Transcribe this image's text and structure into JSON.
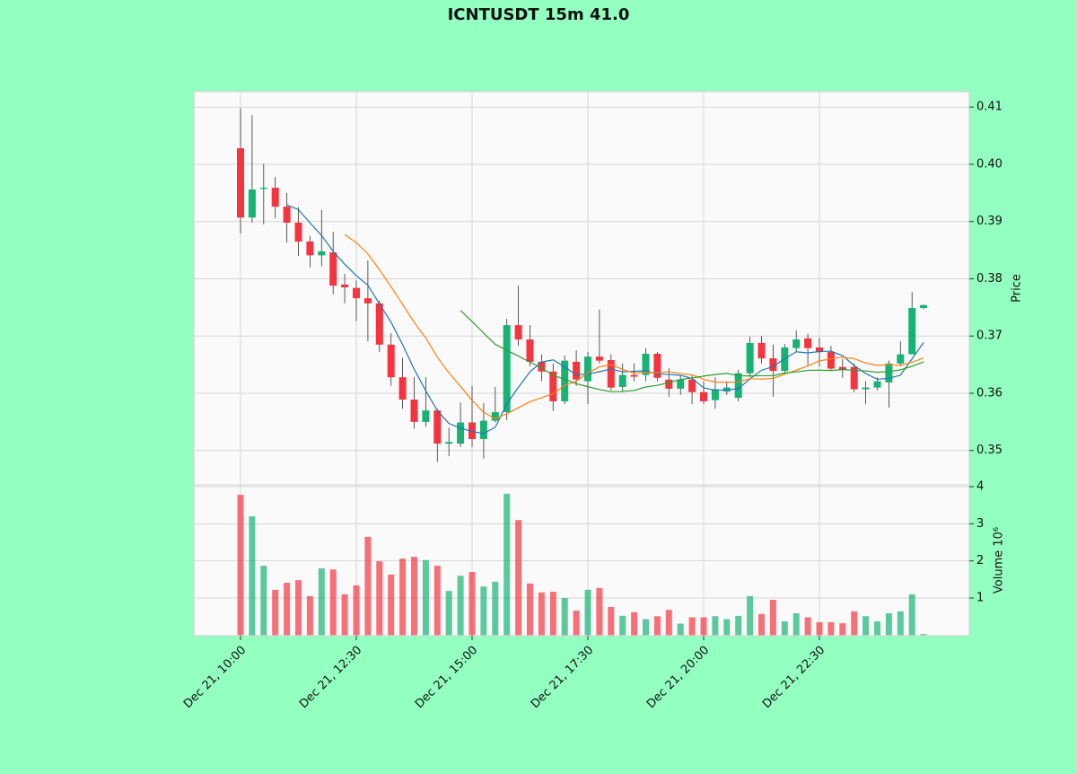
{
  "chart_data": {
    "type": "candlestick",
    "title": "ICNTUSDT 15m 41.0",
    "ylabel": "Price",
    "volume_label": "Volume  10⁶",
    "categories": [
      "Dec 21, 10:00",
      null,
      null,
      null,
      null,
      null,
      null,
      null,
      null,
      null,
      "Dec 21, 12:30",
      null,
      null,
      null,
      null,
      null,
      null,
      null,
      null,
      null,
      "Dec 21, 15:00",
      null,
      null,
      null,
      null,
      null,
      null,
      null,
      null,
      null,
      "Dec 21, 17:30",
      null,
      null,
      null,
      null,
      null,
      null,
      null,
      null,
      null,
      "Dec 21, 20:00",
      null,
      null,
      null,
      null,
      null,
      null,
      null,
      null,
      null,
      "Dec 21, 22:30",
      null,
      null,
      null,
      null,
      null,
      null,
      null,
      null,
      null
    ],
    "open": [
      0.4028,
      0.3907,
      0.3957,
      0.3959,
      0.3926,
      0.3898,
      0.3865,
      0.3841,
      0.3846,
      0.379,
      0.3784,
      0.3766,
      0.3757,
      0.3685,
      0.3628,
      0.3589,
      0.355,
      0.357,
      0.3512,
      0.3512,
      0.3549,
      0.352,
      0.3552,
      0.3567,
      0.3719,
      0.3694,
      0.3655,
      0.3638,
      0.3586,
      0.3655,
      0.3621,
      0.3664,
      0.3658,
      0.3611,
      0.3632,
      0.3632,
      0.3669,
      0.3624,
      0.3608,
      0.3624,
      0.3602,
      0.3588,
      0.3603,
      0.3592,
      0.3635,
      0.3688,
      0.3661,
      0.3639,
      0.3679,
      0.3696,
      0.368,
      0.3672,
      0.3646,
      0.3646,
      0.3607,
      0.361,
      0.3619,
      0.3652,
      0.3668,
      0.3749
    ],
    "high": [
      0.4098,
      0.4086,
      0.4001,
      0.3978,
      0.395,
      0.3925,
      0.3875,
      0.392,
      0.3882,
      0.3809,
      0.3797,
      0.3832,
      0.3762,
      0.3705,
      0.3662,
      0.3628,
      0.3628,
      0.3573,
      0.354,
      0.3584,
      0.3613,
      0.3583,
      0.3611,
      0.373,
      0.3788,
      0.3719,
      0.3668,
      0.3652,
      0.3666,
      0.3675,
      0.3672,
      0.3746,
      0.3668,
      0.3652,
      0.3652,
      0.3679,
      0.3672,
      0.3644,
      0.3632,
      0.3632,
      0.3621,
      0.3628,
      0.3621,
      0.3641,
      0.3699,
      0.37,
      0.3685,
      0.3686,
      0.371,
      0.3704,
      0.3697,
      0.3683,
      0.366,
      0.3652,
      0.3621,
      0.3628,
      0.3657,
      0.3691,
      0.3777,
      0.3755
    ],
    "low": [
      0.3879,
      0.3898,
      0.3895,
      0.3906,
      0.3863,
      0.384,
      0.382,
      0.3822,
      0.3773,
      0.3757,
      0.3726,
      0.3691,
      0.3672,
      0.3613,
      0.3573,
      0.3538,
      0.3541,
      0.348,
      0.349,
      0.3506,
      0.3506,
      0.3486,
      0.3549,
      0.3553,
      0.3683,
      0.3647,
      0.3621,
      0.3569,
      0.3581,
      0.3613,
      0.3581,
      0.3652,
      0.3605,
      0.3603,
      0.3621,
      0.3621,
      0.3621,
      0.3594,
      0.3597,
      0.3581,
      0.3581,
      0.3573,
      0.3597,
      0.3586,
      0.3628,
      0.3652,
      0.3594,
      0.3636,
      0.3672,
      0.3649,
      0.3647,
      0.3639,
      0.3627,
      0.3602,
      0.3581,
      0.3605,
      0.3575,
      0.3647,
      0.3668,
      0.3747
    ],
    "close": [
      0.3907,
      0.3956,
      0.3959,
      0.3926,
      0.3898,
      0.3865,
      0.3841,
      0.3848,
      0.3788,
      0.3785,
      0.3766,
      0.3757,
      0.3685,
      0.3628,
      0.3589,
      0.355,
      0.357,
      0.3512,
      0.3515,
      0.3549,
      0.352,
      0.3552,
      0.3567,
      0.3719,
      0.3694,
      0.3655,
      0.3638,
      0.3586,
      0.3657,
      0.3624,
      0.3664,
      0.3657,
      0.361,
      0.3632,
      0.3629,
      0.3669,
      0.3627,
      0.3608,
      0.3624,
      0.3602,
      0.3586,
      0.3607,
      0.361,
      0.3635,
      0.3688,
      0.3661,
      0.3639,
      0.368,
      0.3694,
      0.3679,
      0.3672,
      0.3643,
      0.3641,
      0.3607,
      0.361,
      0.3621,
      0.3652,
      0.3668,
      0.3749,
      0.3754
    ],
    "volume": [
      3.78,
      3.2,
      1.87,
      1.22,
      1.41,
      1.48,
      1.05,
      1.8,
      1.77,
      1.1,
      1.34,
      2.65,
      1.99,
      1.63,
      2.06,
      2.11,
      2.02,
      1.87,
      1.19,
      1.6,
      1.7,
      1.31,
      1.44,
      3.81,
      3.1,
      1.39,
      1.15,
      1.17,
      1.0,
      0.66,
      1.22,
      1.27,
      0.76,
      0.52,
      0.62,
      0.43,
      0.51,
      0.68,
      0.31,
      0.48,
      0.48,
      0.51,
      0.43,
      0.52,
      1.05,
      0.57,
      0.95,
      0.37,
      0.59,
      0.48,
      0.35,
      0.35,
      0.32,
      0.64,
      0.51,
      0.37,
      0.59,
      0.64,
      1.1,
      0.03
    ],
    "up_color": "#16b374",
    "down_color": "#f5343f",
    "mav": [
      {
        "window": 5,
        "color": "#1f77b4"
      },
      {
        "window": 10,
        "color": "#ff7f0e"
      },
      {
        "window": 20,
        "color": "#2ca02c"
      }
    ],
    "ylim": [
      0.344,
      0.4127
    ],
    "yticks": [
      {
        "value": 0.35,
        "label": "0.35"
      },
      {
        "value": 0.36,
        "label": "0.36"
      },
      {
        "value": 0.37,
        "label": "0.37"
      },
      {
        "value": 0.38,
        "label": "0.38"
      },
      {
        "value": 0.39,
        "label": "0.39"
      },
      {
        "value": 0.4,
        "label": "0.40"
      },
      {
        "value": 0.41,
        "label": "0.41"
      }
    ],
    "volume_ylim": [
      -0.016,
      4.048
    ],
    "volume_yticks": [
      1,
      2,
      3,
      4
    ],
    "grid": true
  }
}
